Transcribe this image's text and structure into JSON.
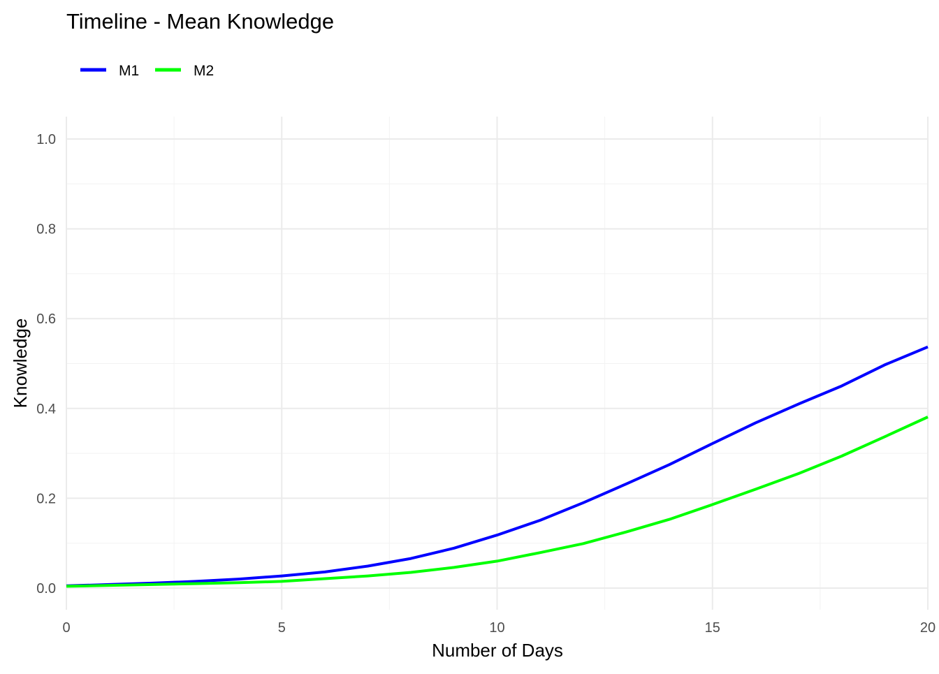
{
  "chart_data": {
    "type": "line",
    "title": "Timeline - Mean Knowledge",
    "xlabel": "Number of Days",
    "ylabel": "Knowledge",
    "xlim": [
      0,
      20
    ],
    "ylim": [
      0,
      1
    ],
    "x_ticks": [
      0,
      5,
      10,
      15,
      20
    ],
    "y_ticks": [
      0.0,
      0.2,
      0.4,
      0.6,
      0.8,
      1.0
    ],
    "y_tick_labels": [
      "0.0",
      "0.2",
      "0.4",
      "0.6",
      "0.8",
      "1.0"
    ],
    "grid": true,
    "legend_position": "top-left",
    "x": [
      0,
      1,
      2,
      3,
      4,
      5,
      6,
      7,
      8,
      9,
      10,
      11,
      12,
      13,
      14,
      15,
      16,
      17,
      18,
      19,
      20
    ],
    "series": [
      {
        "name": "M1",
        "color": "#0000ff",
        "values": [
          0.005,
          0.008,
          0.011,
          0.015,
          0.02,
          0.027,
          0.036,
          0.049,
          0.066,
          0.089,
          0.118,
          0.151,
          0.19,
          0.232,
          0.275,
          0.322,
          0.368,
          0.41,
          0.45,
          0.497,
          0.537
        ]
      },
      {
        "name": "M2",
        "color": "#00ff00",
        "values": [
          0.004,
          0.006,
          0.008,
          0.01,
          0.012,
          0.015,
          0.021,
          0.027,
          0.035,
          0.046,
          0.06,
          0.079,
          0.099,
          0.125,
          0.153,
          0.186,
          0.22,
          0.255,
          0.294,
          0.337,
          0.381
        ]
      }
    ]
  }
}
